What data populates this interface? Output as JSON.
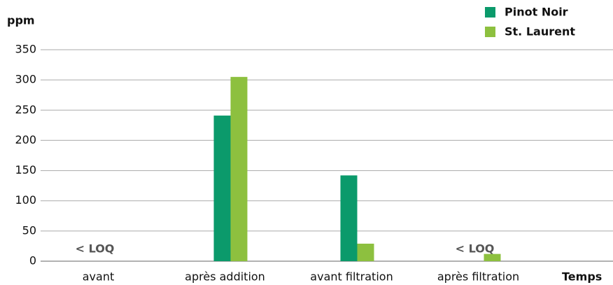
{
  "chart_data": {
    "type": "bar",
    "y_label": "ppm",
    "x_label": "Temps",
    "categories": [
      "avant",
      "après addition",
      "avant filtration",
      "après filtration"
    ],
    "series": [
      {
        "name": "Pinot Noir",
        "color": "#0b9a6b",
        "values": [
          null,
          241,
          142,
          null
        ]
      },
      {
        "name": "St. Laurent",
        "color": "#8dc03f",
        "values": [
          null,
          305,
          29,
          12
        ]
      }
    ],
    "annotations": [
      "< LOQ",
      "< LOQ"
    ],
    "ylim": [
      0,
      350
    ],
    "yticks": [
      0,
      50,
      100,
      150,
      200,
      250,
      300,
      350
    ],
    "grid": true,
    "legend": "top-right"
  }
}
